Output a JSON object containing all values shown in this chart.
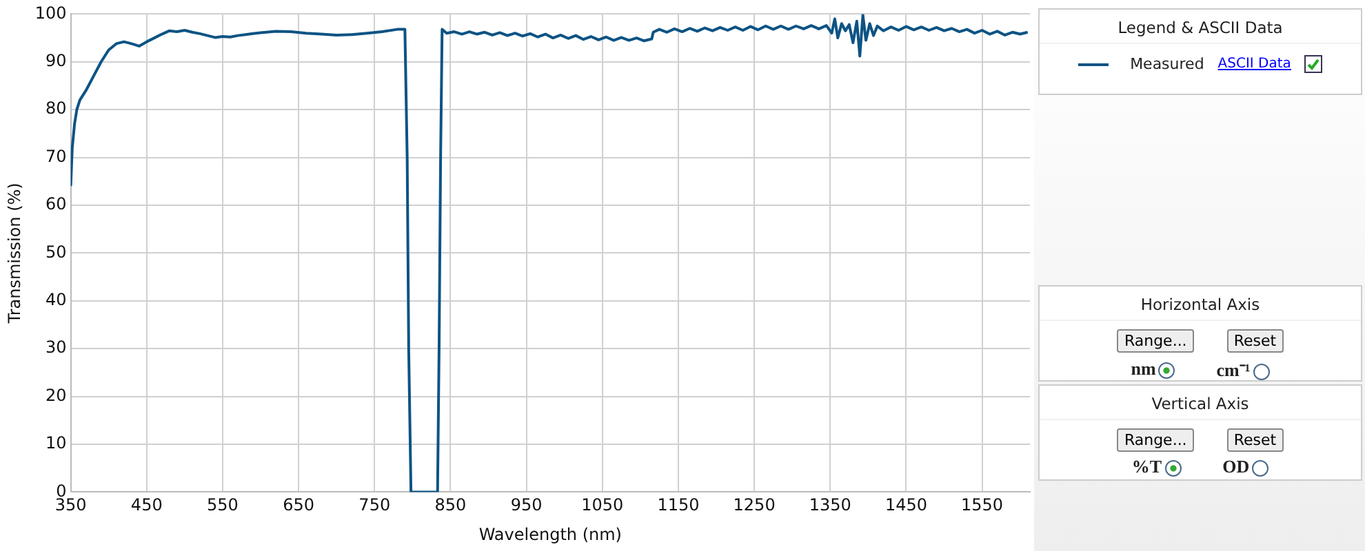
{
  "chart_data": {
    "type": "line",
    "xlabel": "Wavelength (nm)",
    "ylabel": "Transmission (%)",
    "legend_title": "Legend & ASCII Data",
    "annotations": [
      "ASCII Data",
      "Horizontal Axis",
      "Range...",
      "Reset",
      "nm",
      "cm⁻¹",
      "Vertical Axis",
      "Range...",
      "Reset",
      "%T",
      "OD"
    ],
    "x": [
      350,
      352,
      355,
      358,
      362,
      370,
      380,
      390,
      400,
      410,
      420,
      430,
      440,
      450,
      460,
      470,
      480,
      490,
      500,
      510,
      520,
      530,
      540,
      550,
      560,
      570,
      580,
      590,
      600,
      620,
      640,
      660,
      680,
      700,
      720,
      740,
      760,
      780,
      790,
      793,
      795,
      798,
      833,
      835,
      837,
      839,
      845,
      855,
      865,
      875,
      885,
      895,
      905,
      915,
      925,
      935,
      945,
      955,
      965,
      975,
      985,
      995,
      1005,
      1015,
      1025,
      1035,
      1045,
      1055,
      1065,
      1075,
      1085,
      1095,
      1105,
      1115,
      1117,
      1125,
      1135,
      1145,
      1155,
      1165,
      1175,
      1185,
      1195,
      1205,
      1215,
      1225,
      1235,
      1245,
      1255,
      1265,
      1275,
      1285,
      1295,
      1305,
      1315,
      1325,
      1335,
      1345,
      1352,
      1356,
      1360,
      1365,
      1370,
      1375,
      1380,
      1385,
      1389,
      1393,
      1397,
      1402,
      1407,
      1412,
      1420,
      1430,
      1440,
      1450,
      1460,
      1470,
      1480,
      1490,
      1500,
      1510,
      1520,
      1530,
      1540,
      1550,
      1560,
      1570,
      1580,
      1590,
      1600,
      1610
    ],
    "series": [
      {
        "name": "Measured",
        "color": "#0d5384",
        "values": [
          64,
          72,
          77,
          80,
          82,
          84,
          87,
          90,
          92.5,
          93.8,
          94.2,
          93.8,
          93.3,
          94.2,
          95,
          95.8,
          96.5,
          96.3,
          96.6,
          96.2,
          95.9,
          95.5,
          95.1,
          95.3,
          95.2,
          95.5,
          95.7,
          95.9,
          96.1,
          96.4,
          96.3,
          96,
          95.8,
          95.6,
          95.7,
          96,
          96.3,
          96.8,
          96.8,
          70,
          30,
          0,
          0,
          30,
          70,
          96.8,
          96,
          96.3,
          95.8,
          96.3,
          95.8,
          96.2,
          95.6,
          96.1,
          95.5,
          96,
          95.4,
          95.9,
          95.2,
          95.8,
          95,
          95.6,
          94.9,
          95.5,
          94.7,
          95.3,
          94.6,
          95.2,
          94.5,
          95.1,
          94.5,
          95,
          94.4,
          94.8,
          96.2,
          96.8,
          96.2,
          96.9,
          96.3,
          97,
          96.4,
          97.1,
          96.5,
          97.2,
          96.6,
          97.3,
          96.6,
          97.4,
          96.7,
          97.5,
          96.8,
          97.5,
          96.8,
          97.5,
          96.9,
          97.6,
          96.9,
          97.6,
          96,
          99,
          95,
          98,
          96.5,
          97.8,
          94,
          98.5,
          91.2,
          99.8,
          94.5,
          98,
          95.5,
          97.5,
          96.5,
          97.3,
          96.6,
          97.4,
          96.7,
          97.3,
          96.6,
          97.2,
          96.5,
          97,
          96.3,
          96.8,
          96,
          96.6,
          95.8,
          96.4,
          95.6,
          96.2,
          95.8,
          96.2
        ]
      }
    ],
    "xlim": [
      350,
      1613
    ],
    "xticks": [
      350,
      450,
      550,
      650,
      750,
      850,
      950,
      1050,
      1150,
      1250,
      1350,
      1450,
      1550
    ],
    "ylim": [
      0,
      100
    ],
    "yticks": [
      0,
      10,
      20,
      30,
      40,
      50,
      60,
      70,
      80,
      90,
      100
    ],
    "grid": true,
    "legend": "top right",
    "marker": "none",
    "line_style": "solid"
  }
}
